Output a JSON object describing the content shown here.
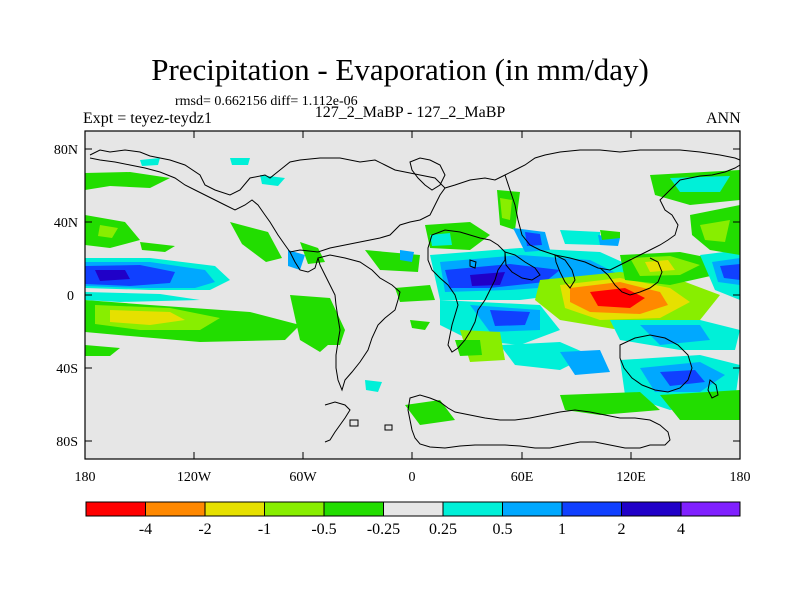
{
  "title": "Precipitation - Evaporation (in mm/day)",
  "stats": "rmsd= 0.662156 diff= 1.112e-06",
  "expt": "Expt = teyez-teydz1",
  "subtitle": "127_2_MaBP - 127_2_MaBP",
  "season": "ANN",
  "y_axis_labels": [
    "80N",
    "40N",
    "0",
    "40S",
    "80S"
  ],
  "x_axis_labels": [
    "180",
    "120W",
    "60W",
    "0",
    "60E",
    "120E",
    "180"
  ],
  "colorbar": {
    "labels": [
      "-4",
      "-2",
      "-1",
      "-0.5",
      "-0.25",
      "0.25",
      "0.5",
      "1",
      "2",
      "4"
    ],
    "colors": [
      "#ff0000",
      "#ff8800",
      "#e6e000",
      "#88ee00",
      "#22dd00",
      "#e6e6e6",
      "#00f0d8",
      "#00a8ff",
      "#1040ff",
      "#2000c8",
      "#8020ff"
    ]
  },
  "colors": {
    "background": "#e6e6e6",
    "coast": "#000000"
  }
}
